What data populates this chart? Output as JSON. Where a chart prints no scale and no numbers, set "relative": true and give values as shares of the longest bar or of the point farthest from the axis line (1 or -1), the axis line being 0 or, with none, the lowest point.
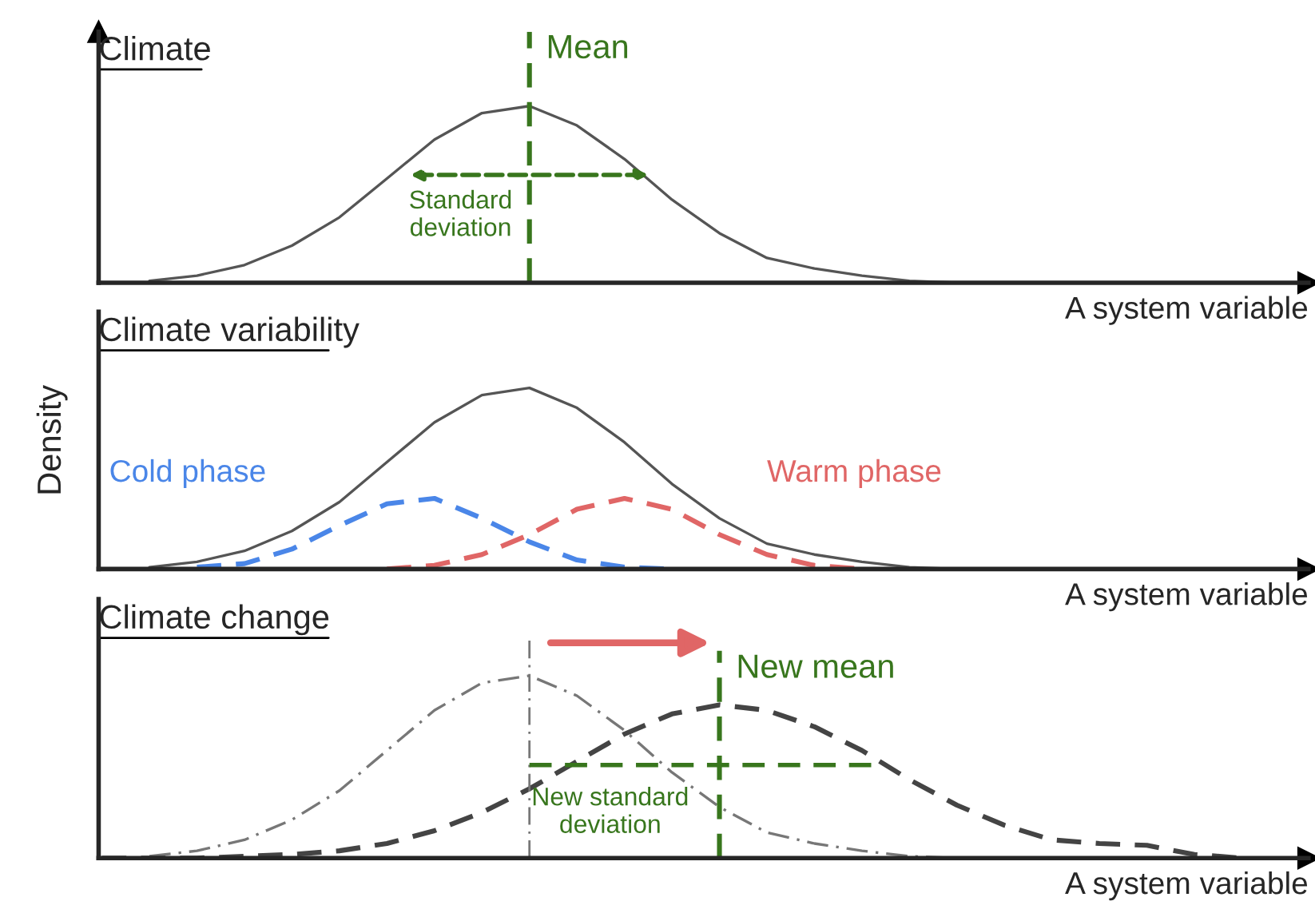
{
  "chart_data": [
    {
      "type": "line",
      "title": "Climate",
      "xlabel": "A system variable",
      "relative": true,
      "legend": false,
      "categories": [
        null,
        null,
        null,
        null,
        null,
        null,
        null,
        null,
        null,
        null,
        null,
        null,
        null,
        null,
        null,
        null,
        null,
        null,
        null,
        null,
        null,
        null,
        null,
        null,
        null,
        null
      ],
      "series": [
        {
          "color": "#555555",
          "line_style": "solid",
          "values": [
            null,
            0.01,
            0.04,
            0.1,
            0.21,
            0.37,
            0.59,
            0.81,
            0.96,
            1.0,
            0.89,
            0.7,
            0.47,
            0.28,
            0.14,
            0.08,
            0.04,
            0.01,
            0.0,
            null,
            null,
            null,
            null,
            null,
            null,
            null
          ]
        }
      ],
      "annotations": [
        "Mean",
        "Standard deviation"
      ]
    },
    {
      "type": "line",
      "title": "Climate variability",
      "xlabel": "A system variable",
      "ylabel": "Density",
      "relative": true,
      "legend": false,
      "categories": [
        null,
        null,
        null,
        null,
        null,
        null,
        null,
        null,
        null,
        null,
        null,
        null,
        null,
        null,
        null,
        null,
        null,
        null,
        null,
        null,
        null,
        null,
        null,
        null,
        null,
        null
      ],
      "series": [
        {
          "color": "#555555",
          "line_style": "solid",
          "values": [
            null,
            0.01,
            0.04,
            0.1,
            0.21,
            0.37,
            0.59,
            0.81,
            0.96,
            1.0,
            0.89,
            0.7,
            0.47,
            0.28,
            0.14,
            0.08,
            0.04,
            0.01,
            0.0,
            null,
            null,
            null,
            null,
            null,
            null,
            null
          ]
        },
        {
          "name": "Cold phase",
          "color": "#4a86e8",
          "line_style": "dashed",
          "values": [
            null,
            null,
            0.01,
            0.03,
            0.11,
            0.24,
            0.36,
            0.39,
            0.28,
            0.15,
            0.05,
            0.01,
            0.0,
            null,
            null,
            null,
            null,
            null,
            null,
            null,
            null,
            null,
            null,
            null,
            null,
            null
          ]
        },
        {
          "name": "Warm phase",
          "color": "#e06666",
          "line_style": "dashed",
          "values": [
            null,
            null,
            null,
            null,
            null,
            null,
            0.0,
            0.02,
            0.08,
            0.19,
            0.33,
            0.39,
            0.33,
            0.19,
            0.08,
            0.02,
            0.0,
            null,
            null,
            null,
            null,
            null,
            null,
            null,
            null,
            null
          ]
        }
      ]
    },
    {
      "type": "line",
      "title": "Climate change",
      "xlabel": "A system variable",
      "relative": true,
      "legend": false,
      "categories": [
        null,
        null,
        null,
        null,
        null,
        null,
        null,
        null,
        null,
        null,
        null,
        null,
        null,
        null,
        null,
        null,
        null,
        null,
        null,
        null,
        null,
        null,
        null,
        null,
        null,
        null
      ],
      "series": [
        {
          "color": "#777777",
          "line_style": "dotted",
          "values": [
            null,
            0.01,
            0.04,
            0.1,
            0.21,
            0.37,
            0.59,
            0.81,
            0.96,
            1.0,
            0.89,
            0.7,
            0.47,
            0.28,
            0.14,
            0.08,
            0.04,
            0.01,
            0.0,
            null,
            null,
            null,
            null,
            null,
            null,
            null
          ]
        },
        {
          "color": "#444444",
          "line_style": "dashed",
          "values": [
            0.0,
            0.0,
            0.0,
            0.01,
            0.02,
            0.04,
            0.08,
            0.15,
            0.25,
            0.38,
            0.53,
            0.68,
            0.79,
            0.84,
            0.81,
            0.72,
            0.59,
            0.43,
            0.29,
            0.18,
            0.1,
            0.08,
            0.07,
            0.02,
            0.0,
            null
          ]
        }
      ],
      "annotations": [
        "New mean",
        "New standard deviation"
      ]
    }
  ]
}
